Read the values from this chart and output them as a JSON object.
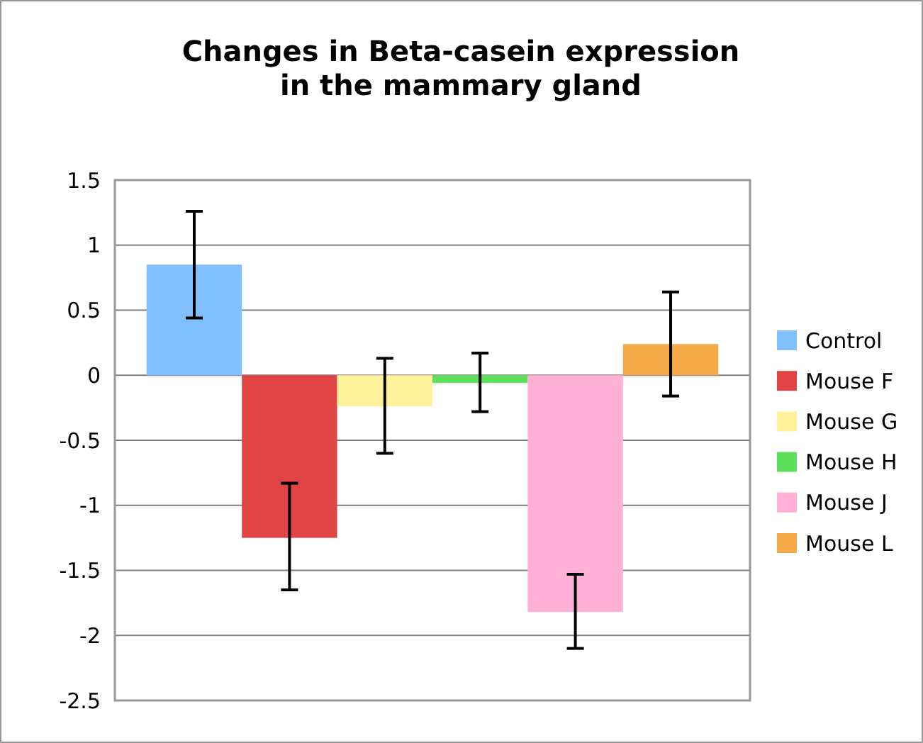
{
  "chart_data": {
    "type": "bar",
    "title": "Changes in Beta-casein expression in the mammary gland",
    "categories": [
      null
    ],
    "series": [
      {
        "name": "Control",
        "color": "#80c0ff",
        "values": [
          0.85
        ],
        "errors": [
          [
            0.44,
            1.26
          ]
        ]
      },
      {
        "name": "Mouse F",
        "color": "#e04444",
        "values": [
          -1.25
        ],
        "errors": [
          [
            -1.65,
            -0.83
          ]
        ]
      },
      {
        "name": "Mouse G",
        "color": "#fff09a",
        "values": [
          -0.24
        ],
        "errors": [
          [
            -0.6,
            0.13
          ]
        ]
      },
      {
        "name": "Mouse H",
        "color": "#5ee05e",
        "values": [
          -0.06
        ],
        "errors": [
          [
            -0.28,
            0.17
          ]
        ]
      },
      {
        "name": "Mouse J",
        "color": "#ffb0d4",
        "values": [
          -1.82
        ],
        "errors": [
          [
            -2.1,
            -1.53
          ]
        ]
      },
      {
        "name": "Mouse L",
        "color": "#f4aa48",
        "values": [
          0.24
        ],
        "errors": [
          [
            -0.16,
            0.64
          ]
        ]
      }
    ],
    "ylim": [
      -2.5,
      1.5
    ],
    "yticks": [
      {
        "value": -2.5,
        "label": "-2.5"
      },
      {
        "value": -2,
        "label": "-2"
      },
      {
        "value": -1.5,
        "label": "-1.5"
      },
      {
        "value": -1,
        "label": "-1"
      },
      {
        "value": -0.5,
        "label": "-0.5"
      },
      {
        "value": 0,
        "label": "0"
      },
      {
        "value": 0.5,
        "label": "0.5"
      },
      {
        "value": 1,
        "label": "1"
      },
      {
        "value": 1.5,
        "label": "1.5"
      }
    ],
    "grid": "y",
    "legend": "right"
  }
}
